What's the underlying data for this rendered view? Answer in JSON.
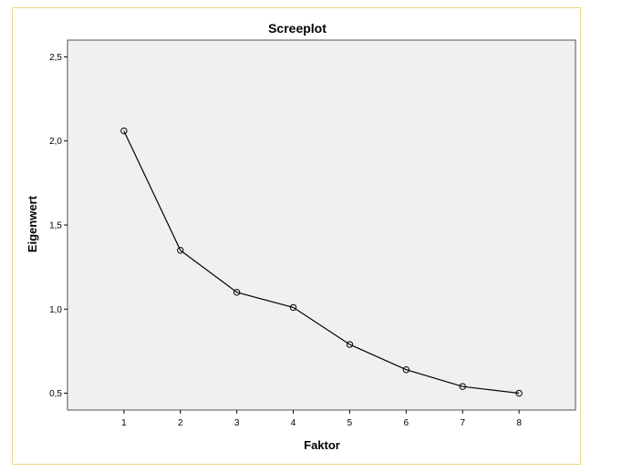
{
  "chart_data": {
    "type": "line",
    "title": "Screeplot",
    "xlabel": "Faktor",
    "ylabel": "Eigenwert",
    "x": [
      1,
      2,
      3,
      4,
      5,
      6,
      7,
      8
    ],
    "x_tick_labels": [
      "1",
      "2",
      "3",
      "4",
      "5",
      "6",
      "7",
      "8"
    ],
    "xlim": [
      0,
      9
    ],
    "y_ticks": [
      0.5,
      1.0,
      1.5,
      2.0,
      2.5
    ],
    "y_tick_labels": [
      "0,5",
      "1,0",
      "1,5",
      "2,0",
      "2,5"
    ],
    "ylim": [
      0.4,
      2.6
    ],
    "series": [
      {
        "values": [
          2.06,
          1.35,
          1.1,
          1.01,
          0.79,
          0.64,
          0.54,
          0.5
        ]
      }
    ],
    "marker": "open-circle",
    "grid": false,
    "colors": {
      "plot_background": "#f0f0f0",
      "line": "#000000",
      "frame_border": "#e8d98a"
    }
  }
}
